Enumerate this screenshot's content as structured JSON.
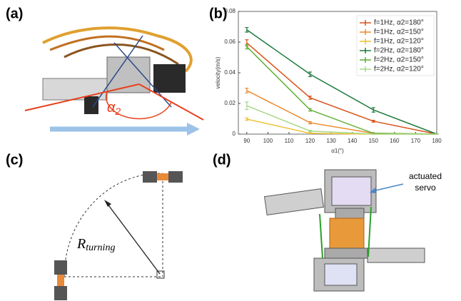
{
  "panel_labels": [
    "(a)",
    "(b)",
    "(c)",
    "(d)"
  ],
  "angle_label": {
    "symbol": "α",
    "subscript": "2"
  },
  "radius_label": {
    "symbol": "R",
    "subscript": "turning"
  },
  "servo_label": [
    "actuated",
    "servo"
  ],
  "chart_data": {
    "type": "line",
    "x_label": "α1(°)",
    "y_label": "velocity(m/s)",
    "x": [
      90,
      120,
      150,
      180
    ],
    "xlim": [
      86,
      180
    ],
    "xticks": [
      90,
      100,
      110,
      120,
      130,
      140,
      150,
      160,
      170,
      180
    ],
    "ylim": [
      0,
      0.08
    ],
    "yticks": [
      0,
      0.02,
      0.04,
      0.06,
      0.08
    ],
    "legend": "top-right",
    "series": [
      {
        "name": "f=1Hz, α2=180°",
        "color": "#d95319",
        "values": [
          0.0595,
          0.0237,
          0.0084,
          0
        ],
        "errors": [
          0.002,
          0.001,
          0.0006,
          0
        ]
      },
      {
        "name": "f=1Hz, α2=150°",
        "color": "#ee8a2e",
        "values": [
          0.0284,
          0.0074,
          0.0005,
          0
        ],
        "errors": [
          0.0015,
          0.0007,
          0.0002,
          0
        ]
      },
      {
        "name": "f=1Hz, α2=120°",
        "color": "#edc130",
        "values": [
          0.0098,
          0.0005,
          0,
          0
        ],
        "errors": [
          0.0008,
          0.0002,
          0,
          0
        ]
      },
      {
        "name": "f=2Hz, α2=180°",
        "color": "#1e7a3c",
        "values": [
          0.068,
          0.039,
          0.0158,
          0
        ],
        "errors": [
          0.0015,
          0.0015,
          0.0015,
          0
        ]
      },
      {
        "name": "f=2Hz, α2=150°",
        "color": "#5fae33",
        "values": [
          0.057,
          0.0158,
          0.0005,
          0
        ],
        "errors": [
          0.0015,
          0.0008,
          0.0002,
          0
        ]
      },
      {
        "name": "f=2Hz, α2=120°",
        "color": "#a9d88a",
        "values": [
          0.0185,
          0.002,
          0,
          0
        ],
        "errors": [
          0.0025,
          0.0005,
          0,
          0
        ]
      }
    ]
  }
}
